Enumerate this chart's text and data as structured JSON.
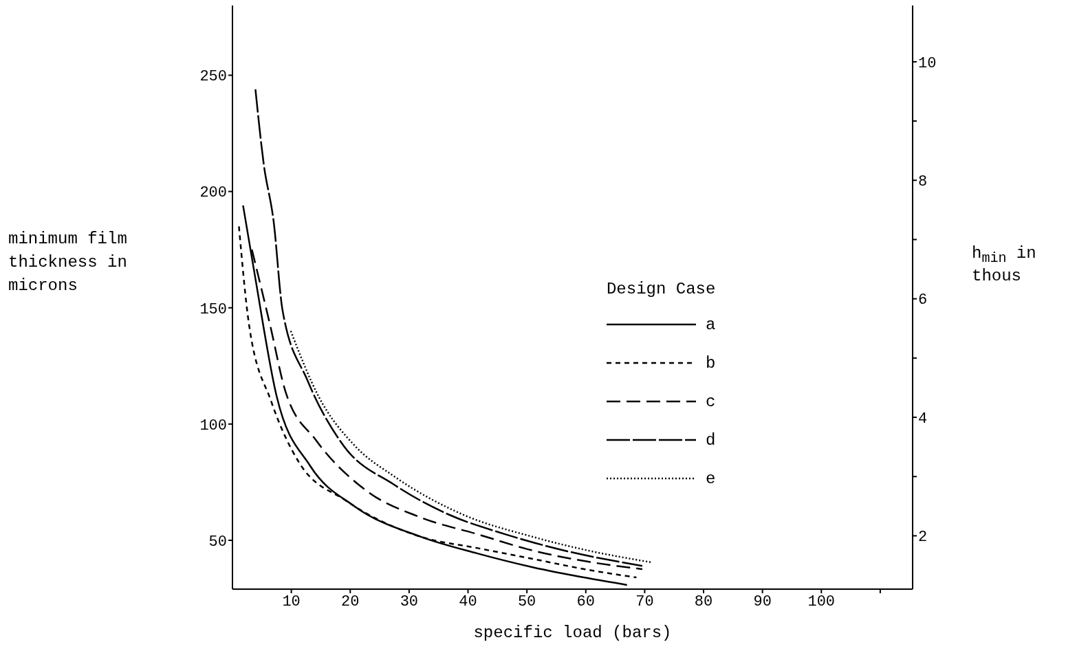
{
  "chart_data": {
    "type": "line",
    "xlabel": "specific load (bars)",
    "ylabel": "minimum film thickness in microns",
    "y2label": "h$_{min}$ in thous",
    "legend_title": "Design Case",
    "legend": "right",
    "grid": false,
    "marker": "none",
    "xlim": [
      0,
      115.5
    ],
    "xticks": [
      10,
      20,
      30,
      40,
      50,
      60,
      70,
      80,
      90,
      100,
      {
        "value": 110,
        "label": null
      }
    ],
    "ylim": [
      29,
      280
    ],
    "yticks": [
      50,
      100,
      150,
      200,
      250
    ],
    "y2lim": [
      1.1,
      10.95
    ],
    "y2ticks": [
      2,
      {
        "value": 3,
        "label": null
      },
      4,
      {
        "value": 5,
        "label": null
      },
      6,
      {
        "value": 7,
        "label": null
      },
      8,
      {
        "value": 9,
        "label": null
      },
      10
    ],
    "series": [
      {
        "name": "a",
        "color": "#000000",
        "line_style": "solid",
        "x": [
          1.8,
          3.8,
          7.5,
          13.2,
          20.8,
          32,
          41.5,
          51,
          60.4,
          67
        ],
        "values": [
          194,
          164,
          112,
          82,
          64.5,
          51.5,
          44.4,
          38.4,
          33.7,
          30.8
        ]
      },
      {
        "name": "b",
        "color": "#000000",
        "line_style": "dashed",
        "x": [
          1.1,
          2.8,
          6.6,
          11.3,
          19.3,
          32,
          41.5,
          51,
          60.4,
          68.6
        ],
        "values": [
          185,
          143,
          109.6,
          83.5,
          67,
          51.5,
          46.7,
          42,
          37.3,
          34
        ]
      },
      {
        "name": "c",
        "color": "#000000",
        "line_style": "dashed",
        "x": [
          3.3,
          6.4,
          9,
          14.2,
          22.6,
          32,
          41.5,
          51,
          60.4,
          69.6
        ],
        "values": [
          175,
          142.5,
          114,
          93,
          71.6,
          59.8,
          52.7,
          45.6,
          40.8,
          37.6
        ]
      },
      {
        "name": "d",
        "color": "#000000",
        "line_style": "dashed",
        "x": [
          3.9,
          5.3,
          7,
          8.5,
          12.7,
          18.9,
          27.4,
          36.8,
          46.2,
          55.7,
          69.6
        ],
        "values": [
          244,
          212,
          187,
          149,
          119,
          90.6,
          74,
          61,
          52.7,
          46,
          39
        ]
      },
      {
        "name": "e",
        "color": "#000000",
        "line_style": "dotted",
        "x": [
          9.9,
          14.6,
          20.8,
          27.4,
          39.2,
          51,
          60.4,
          71.2
        ],
        "values": [
          140,
          112,
          90.6,
          77.6,
          61,
          51.5,
          45.6,
          40.5
        ]
      }
    ]
  }
}
